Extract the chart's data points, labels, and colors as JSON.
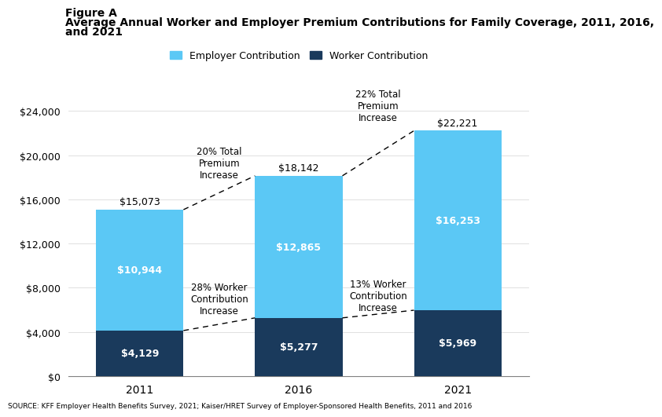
{
  "years": [
    "2011",
    "2016",
    "2021"
  ],
  "employer_contributions": [
    10944,
    12865,
    16253
  ],
  "worker_contributions": [
    4129,
    5277,
    5969
  ],
  "totals": [
    15073,
    18142,
    22221
  ],
  "employer_color": "#5bc8f5",
  "worker_color": "#1a3a5c",
  "bar_width": 0.55,
  "ylim": [
    0,
    26500
  ],
  "yticks": [
    0,
    4000,
    8000,
    12000,
    16000,
    20000,
    24000
  ],
  "title_line1": "Figure A",
  "title_line2": "Average Annual Worker and Employer Premium Contributions for Family Coverage, 2011, 2016,",
  "title_line3": "and 2021",
  "legend_employer": "Employer Contribution",
  "legend_worker": "Worker Contribution",
  "annotation_20pct": "20% Total\nPremium\nIncrease",
  "annotation_22pct": "22% Total\nPremium\nIncrease",
  "annotation_28pct": "28% Worker\nContribution\nIncrease",
  "annotation_13pct": "13% Worker\nContribution\nIncrease",
  "source_text": "SOURCE: KFF Employer Health Benefits Survey, 2021; Kaiser/HRET Survey of Employer-Sponsored Health Benefits, 2011 and 2016",
  "background_color": "#ffffff",
  "xlim": [
    -0.45,
    2.45
  ]
}
